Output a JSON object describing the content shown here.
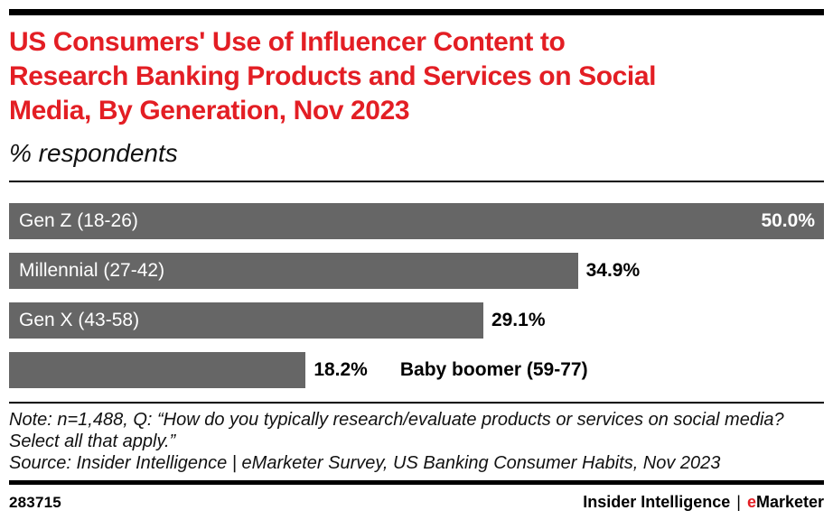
{
  "page": {
    "background": "#ffffff",
    "accent_red": "#e31e24",
    "text_black": "#000000"
  },
  "header": {
    "title_lines": [
      "US Consumers' Use of Influencer Content to",
      "Research Banking Products and Services on Social",
      "Media, By Generation, Nov 2023"
    ],
    "subtitle": "% respondents"
  },
  "chart_data": {
    "type": "bar",
    "orientation": "horizontal",
    "title": "US Consumers' Use of Influencer Content to Research Banking Products and Services on Social Media, By Generation, Nov 2023",
    "subtitle": "% respondents",
    "categories": [
      "Gen Z (18-26)",
      "Millennial (27-42)",
      "Gen X (43-58)",
      "Baby boomer (59-77)"
    ],
    "values": [
      50.0,
      34.9,
      29.1,
      18.2
    ],
    "xlim": [
      0,
      50
    ],
    "grid": false,
    "legend": "none",
    "bar_color": "#666666",
    "bars": [
      {
        "label": "Gen Z (18-26)",
        "value": 50.0,
        "display": "50.0%",
        "label_pos": "inside",
        "value_pos": "inside"
      },
      {
        "label": "Millennial (27-42)",
        "value": 34.9,
        "display": "34.9%",
        "label_pos": "inside",
        "value_pos": "outside"
      },
      {
        "label": "Gen X (43-58)",
        "value": 29.1,
        "display": "29.1%",
        "label_pos": "inside",
        "value_pos": "outside"
      },
      {
        "label": "Baby boomer (59-77)",
        "value": 18.2,
        "display": "18.2%",
        "label_pos": "outside",
        "value_pos": "outside"
      }
    ]
  },
  "footnotes": {
    "note": "Note: n=1,488, Q: “How do you typically research/evaluate products or services on social media? Select all that apply.”",
    "source": "Source: Insider Intelligence | eMarketer Survey, US Banking Consumer Habits, Nov 2023"
  },
  "footer": {
    "chart_id": "283715",
    "brand_left": "Insider Intelligence",
    "brand_separator": "|",
    "brand_e": "e",
    "brand_rest": "Marketer"
  }
}
